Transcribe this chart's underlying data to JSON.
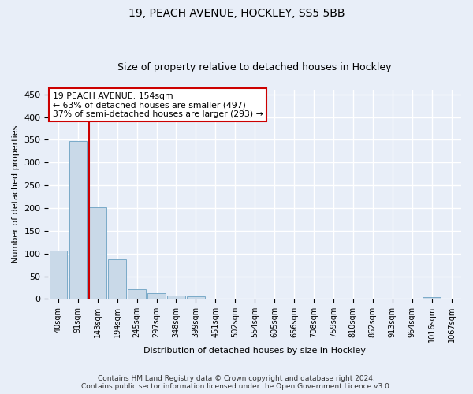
{
  "title1": "19, PEACH AVENUE, HOCKLEY, SS5 5BB",
  "title2": "Size of property relative to detached houses in Hockley",
  "xlabel": "Distribution of detached houses by size in Hockley",
  "ylabel": "Number of detached properties",
  "footer1": "Contains HM Land Registry data © Crown copyright and database right 2024.",
  "footer2": "Contains public sector information licensed under the Open Government Licence v3.0.",
  "categories": [
    "40sqm",
    "91sqm",
    "143sqm",
    "194sqm",
    "245sqm",
    "297sqm",
    "348sqm",
    "399sqm",
    "451sqm",
    "502sqm",
    "554sqm",
    "605sqm",
    "656sqm",
    "708sqm",
    "759sqm",
    "810sqm",
    "862sqm",
    "913sqm",
    "964sqm",
    "1016sqm",
    "1067sqm"
  ],
  "values": [
    107,
    348,
    202,
    88,
    22,
    13,
    8,
    5,
    0,
    0,
    0,
    0,
    0,
    0,
    0,
    0,
    0,
    0,
    0,
    4,
    0
  ],
  "bar_color": "#c9d9e8",
  "bar_edge_color": "#7aaac8",
  "red_line_color": "#cc0000",
  "annotation_text1": "19 PEACH AVENUE: 154sqm",
  "annotation_text2": "← 63% of detached houses are smaller (497)",
  "annotation_text3": "37% of semi-detached houses are larger (293) →",
  "annotation_box_color": "#ffffff",
  "annotation_border_color": "#cc0000",
  "ylim": [
    0,
    460
  ],
  "yticks": [
    0,
    50,
    100,
    150,
    200,
    250,
    300,
    350,
    400,
    450
  ],
  "background_color": "#e8eef8",
  "axes_background": "#e8eef8",
  "grid_color": "#ffffff",
  "title1_fontsize": 10,
  "title2_fontsize": 9,
  "xlabel_fontsize": 8,
  "ylabel_fontsize": 8,
  "footer_fontsize": 6.5
}
